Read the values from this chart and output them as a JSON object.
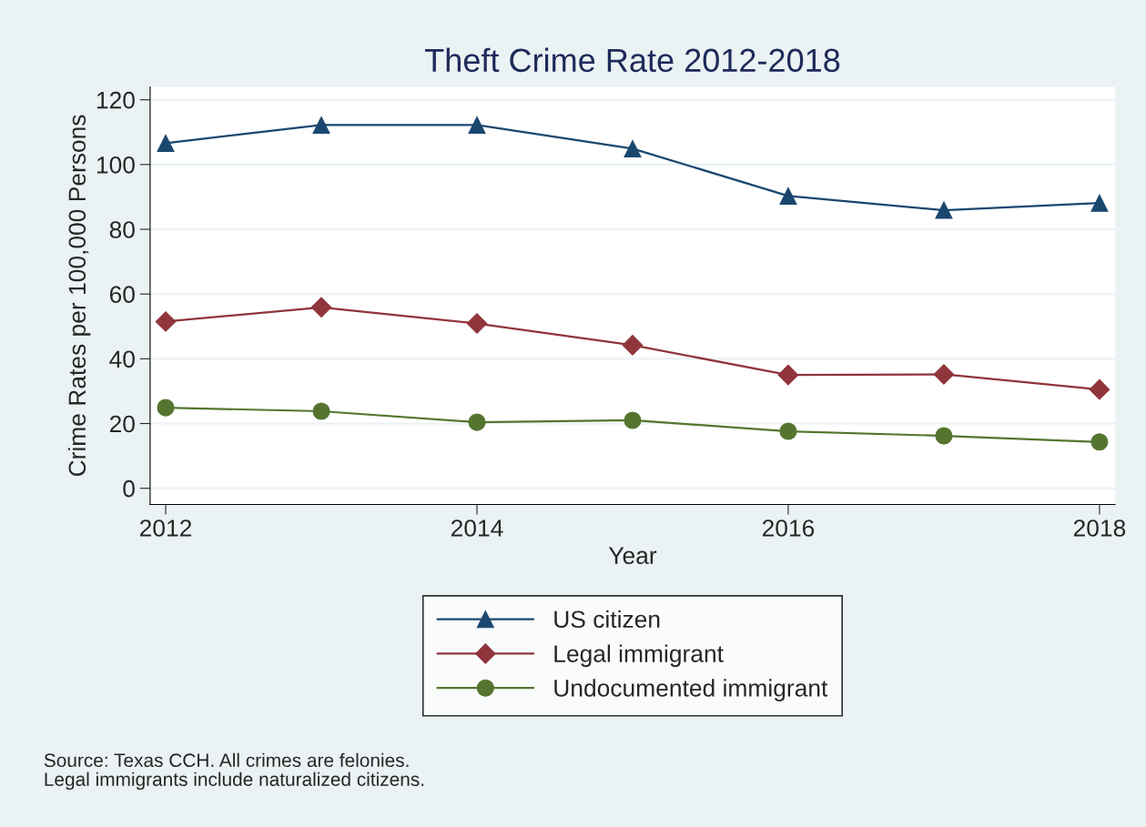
{
  "chart_data": {
    "type": "line",
    "title": "Theft Crime Rate 2012-2018",
    "xlabel": "Year",
    "ylabel": "Crime Rates per 100,000 Persons",
    "x": [
      2012,
      2013,
      2014,
      2015,
      2016,
      2017,
      2018
    ],
    "series": [
      {
        "name": "US citizen",
        "color": "#1a476f",
        "marker": "triangle",
        "values": [
          106.6,
          112.2,
          112.2,
          104.9,
          90.3,
          85.9,
          88.1
        ]
      },
      {
        "name": "Legal immigrant",
        "color": "#90353b",
        "marker": "diamond",
        "values": [
          51.5,
          55.9,
          50.9,
          44.2,
          35.0,
          35.2,
          30.5
        ]
      },
      {
        "name": "Undocumented immigrant",
        "color": "#55752f",
        "marker": "circle",
        "values": [
          24.9,
          23.8,
          20.4,
          21.0,
          17.6,
          16.2,
          14.3
        ]
      }
    ],
    "xlim": [
      2011.9,
      2018.1
    ],
    "xticks": [
      2012,
      2014,
      2016,
      2018
    ],
    "ylim": [
      -5,
      124
    ],
    "yticks": [
      0,
      20,
      40,
      60,
      80,
      100,
      120
    ],
    "grid": "y",
    "legend": "bottom",
    "annotations": [
      "Source: Texas CCH. All crimes are felonies.\nLegal immigrants include naturalized citizens."
    ]
  }
}
